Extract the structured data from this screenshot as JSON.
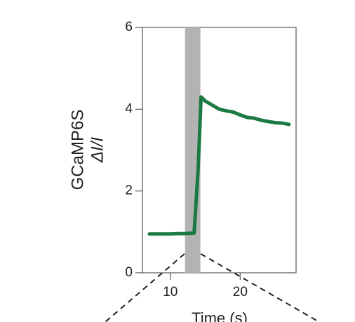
{
  "chart_data": {
    "type": "line",
    "title": "",
    "xlabel": "Time (s)",
    "ylabel_lines": [
      "GCaMP6S",
      "ΔI/I"
    ],
    "xlim": [
      6,
      28
    ],
    "ylim": [
      0,
      6
    ],
    "xticks": [
      10,
      20
    ],
    "yticks": [
      0,
      2,
      4,
      6
    ],
    "xtick_labels": [
      "10",
      "20"
    ],
    "ytick_labels": [
      "0",
      "2",
      "4",
      "6"
    ],
    "grid": false,
    "legend": "none",
    "stimulus_window": [
      12.1,
      14.3
    ],
    "series": [
      {
        "color": "#1b7a43",
        "x": [
          7,
          8,
          9,
          10,
          11,
          12,
          13,
          13.4,
          14,
          14.4,
          15,
          16,
          17,
          18,
          19,
          20,
          21,
          22,
          23,
          24,
          25,
          26,
          27
        ],
        "y": [
          0.95,
          0.95,
          0.95,
          0.95,
          0.96,
          0.96,
          0.97,
          0.97,
          2.6,
          4.3,
          4.2,
          4.1,
          4.0,
          3.96,
          3.93,
          3.86,
          3.8,
          3.78,
          3.73,
          3.7,
          3.67,
          3.66,
          3.63
        ]
      }
    ],
    "colors": {
      "trace": "#1b7a43",
      "stimulus": "#b3b3b3",
      "axis": "#555555"
    }
  }
}
